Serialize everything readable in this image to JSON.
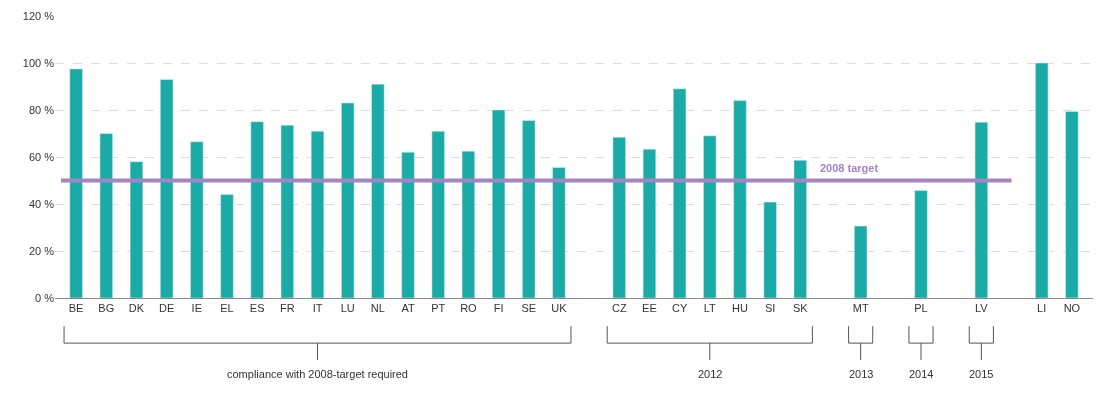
{
  "chart_data": {
    "type": "bar",
    "categories": [
      "BE",
      "BG",
      "DK",
      "DE",
      "IE",
      "EL",
      "ES",
      "FR",
      "IT",
      "LU",
      "NL",
      "AT",
      "PT",
      "RO",
      "FI",
      "SE",
      "UK",
      null,
      "CZ",
      "EE",
      "CY",
      "LT",
      "HU",
      "SI",
      "SK",
      null,
      "MT",
      null,
      "PL",
      null,
      "LV",
      null,
      "LI",
      "NO"
    ],
    "values": [
      97.5,
      70,
      58,
      93,
      66.5,
      44,
      75,
      73.5,
      71,
      83,
      91,
      62,
      71,
      62.5,
      80,
      75.5,
      55.5,
      null,
      68.4,
      63.3,
      89,
      69,
      84,
      40.8,
      58.6,
      null,
      30.6,
      null,
      45.7,
      null,
      74.8,
      null,
      100,
      79.4
    ],
    "color": "#1aaba7",
    "ylim": [
      0,
      120
    ],
    "yticks": [
      {
        "value": 0,
        "label": "0 %"
      },
      {
        "value": 20,
        "label": "20 %"
      },
      {
        "value": 40,
        "label": "40 %"
      },
      {
        "value": 60,
        "label": "60 %"
      },
      {
        "value": 80,
        "label": "80 %"
      },
      {
        "value": 100,
        "label": "100 %"
      },
      {
        "value": 120,
        "label": "120 %"
      }
    ],
    "grid": "y",
    "ref_lines": [
      {
        "axis": "y",
        "value": 50,
        "label": "2008 target",
        "color": "#a584c4"
      }
    ],
    "annotations": [
      "compliance with 2008-target required",
      "2012",
      "2013",
      "2014",
      "2015"
    ]
  }
}
